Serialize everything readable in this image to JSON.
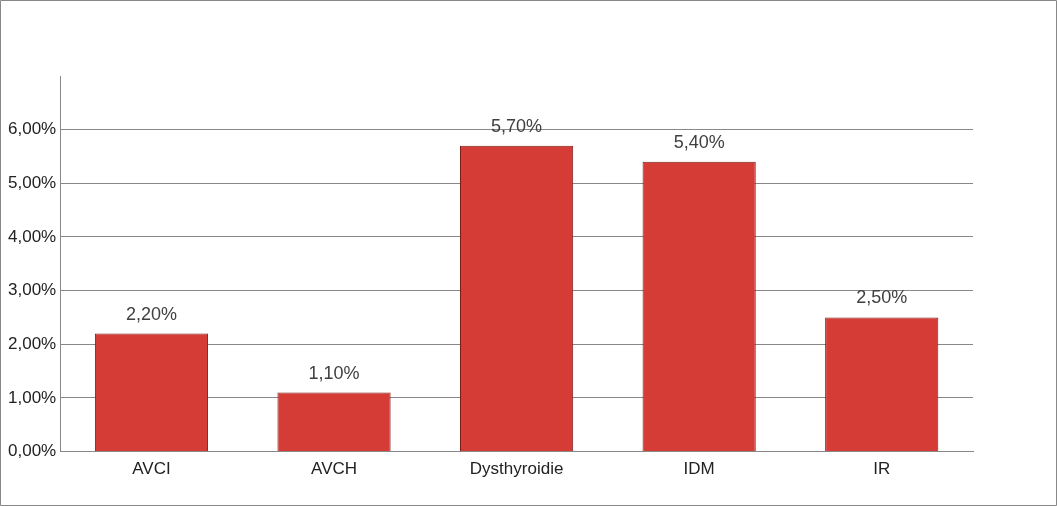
{
  "chart_data": {
    "type": "bar",
    "categories": [
      "AVCI",
      "AVCH",
      "Dysthyroidie",
      "IDM",
      "IR"
    ],
    "values": [
      2.2,
      1.1,
      5.7,
      5.4,
      2.5
    ],
    "value_labels": [
      "2,20%",
      "1,10%",
      "5,70%",
      "5,40%",
      "2,50%"
    ],
    "color": "#d63c36",
    "ylim": [
      0,
      7
    ],
    "yticks": [
      {
        "value": 0,
        "label": "0,00%"
      },
      {
        "value": 1,
        "label": "1,00%"
      },
      {
        "value": 2,
        "label": "2,00%"
      },
      {
        "value": 3,
        "label": "3,00%"
      },
      {
        "value": 4,
        "label": "4,00%"
      },
      {
        "value": 5,
        "label": "5,00%"
      },
      {
        "value": 6,
        "label": "6,00%"
      }
    ],
    "grid": "y",
    "legend": false
  }
}
